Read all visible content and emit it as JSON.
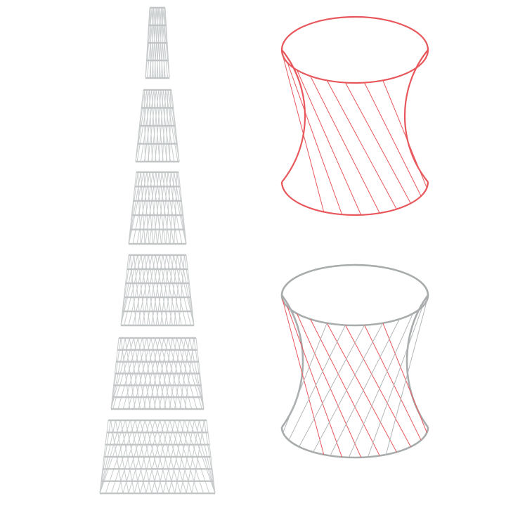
{
  "figure": {
    "colors": {
      "background": "#ffffff",
      "lattice_gray": "#c9cccd",
      "ring_gray": "#c2c5c6",
      "accent_red": "#e8575b",
      "outline_gray": "#a9acad"
    },
    "tower_stack": {
      "section_count": 6,
      "strut_count_per_direction": [
        10,
        12,
        14,
        16,
        18,
        20
      ]
    },
    "hyperboloid_top": {
      "generator_family": "single",
      "line_color": "red",
      "rulings": 12
    },
    "hyperboloid_bottom": {
      "generator_family": "double",
      "line_colors": [
        "red",
        "gray"
      ],
      "rulings_per_family": 12
    }
  }
}
